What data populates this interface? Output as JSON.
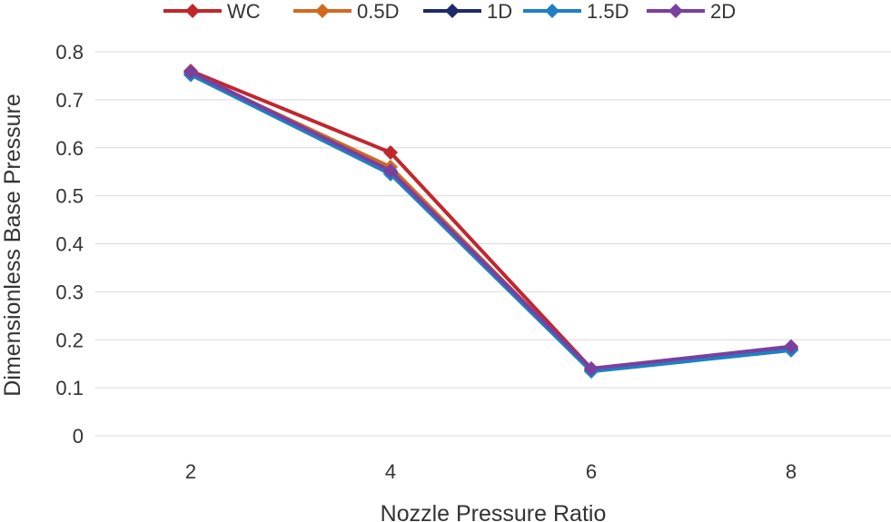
{
  "chart_data": {
    "type": "line",
    "title": "",
    "xlabel": "Nozzle Pressure Ratio",
    "ylabel": "Dimensionless Base Pressure",
    "categories": [
      "2",
      "4",
      "6",
      "8"
    ],
    "x": [
      2,
      4,
      6,
      8
    ],
    "ylim": [
      0,
      0.8
    ],
    "yticks": [
      "0",
      "0.1",
      "0.2",
      "0.3",
      "0.4",
      "0.5",
      "0.6",
      "0.7",
      "0.8"
    ],
    "ytick_values": [
      0,
      0.1,
      0.2,
      0.3,
      0.4,
      0.5,
      0.6,
      0.7,
      0.8
    ],
    "grid": true,
    "legend_position": "top",
    "series": [
      {
        "name": "WC",
        "color": "#c0272d",
        "values": [
          0.76,
          0.59,
          0.14,
          0.185
        ]
      },
      {
        "name": "0.5D",
        "color": "#d2691e",
        "values": [
          0.755,
          0.56,
          0.137,
          0.182
        ]
      },
      {
        "name": "1D",
        "color": "#1f2a6b",
        "values": [
          0.752,
          0.548,
          0.135,
          0.18
        ]
      },
      {
        "name": "1.5D",
        "color": "#1f7fc4",
        "values": [
          0.752,
          0.545,
          0.134,
          0.178
        ]
      },
      {
        "name": "2D",
        "color": "#7b3f9e",
        "values": [
          0.758,
          0.552,
          0.14,
          0.186
        ]
      }
    ]
  }
}
